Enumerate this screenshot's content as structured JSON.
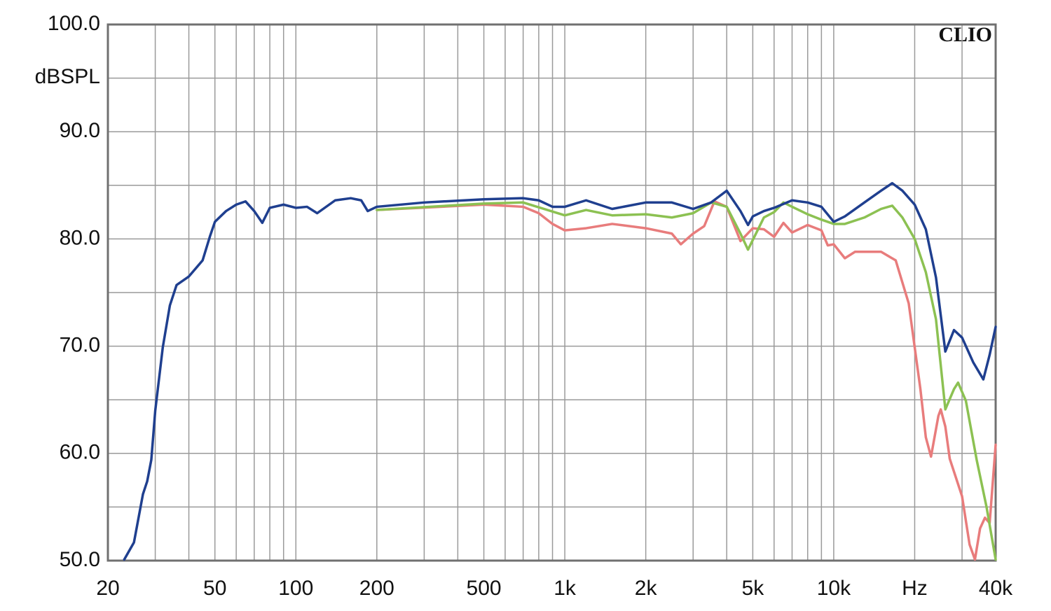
{
  "chart_data": {
    "type": "line",
    "watermark": "CLIO",
    "ylabel": "dBSPL",
    "xscale": "log",
    "xlim": [
      20,
      40000
    ],
    "ylim": [
      50,
      100
    ],
    "xticks": [
      20,
      50,
      100,
      200,
      500,
      {
        "value": 1000,
        "label": "1k"
      },
      {
        "value": 2000,
        "label": "2k"
      },
      {
        "value": 5000,
        "label": "5k"
      },
      {
        "value": 10000,
        "label": "10k"
      },
      {
        "value": 20000,
        "label": "Hz"
      },
      {
        "value": 40000,
        "label": "40k"
      }
    ],
    "xgrid": [
      30,
      40,
      60,
      70,
      80,
      90,
      300,
      400,
      600,
      700,
      800,
      900,
      3000,
      4000,
      6000,
      7000,
      8000,
      9000,
      30000
    ],
    "yticks": [
      {
        "value": 50,
        "label": "50.0"
      },
      {
        "value": 60,
        "label": "60.0"
      },
      {
        "value": 70,
        "label": "70.0"
      },
      {
        "value": 80,
        "label": "80.0"
      },
      {
        "value": 90,
        "label": "90.0"
      },
      {
        "value": 100,
        "label": "100.0"
      }
    ],
    "ygrid": [
      55,
      65,
      75,
      85,
      95
    ],
    "grid": true,
    "series": [
      {
        "color": "#1f3f8f",
        "x": [
          23,
          25,
          27,
          28,
          29,
          30,
          32,
          34,
          36,
          40,
          45,
          48,
          50,
          55,
          60,
          65,
          70,
          75,
          80,
          90,
          100,
          110,
          120,
          140,
          160,
          175,
          185,
          200,
          300,
          500,
          700,
          800,
          900,
          1000,
          1200,
          1500,
          2000,
          2500,
          3000,
          3500,
          4000,
          4500,
          4800,
          5000,
          5500,
          6000,
          7000,
          8000,
          9000,
          10000,
          11000,
          13000,
          15000,
          16500,
          18000,
          20000,
          22000,
          24000,
          26000,
          28000,
          30000,
          33000,
          36000,
          38000,
          40000
        ],
        "values": [
          50.1,
          51.7,
          56.2,
          57.4,
          59.4,
          64.0,
          69.9,
          73.8,
          75.7,
          76.5,
          78.0,
          80.3,
          81.6,
          82.6,
          83.2,
          83.5,
          82.6,
          81.5,
          82.9,
          83.2,
          82.9,
          83.0,
          82.4,
          83.6,
          83.8,
          83.6,
          82.6,
          83.0,
          83.4,
          83.7,
          83.8,
          83.6,
          83.0,
          83.0,
          83.6,
          82.8,
          83.4,
          83.4,
          82.8,
          83.4,
          84.5,
          82.6,
          81.3,
          82.1,
          82.6,
          82.9,
          83.6,
          83.4,
          83.0,
          81.6,
          82.1,
          83.4,
          84.5,
          85.2,
          84.5,
          83.2,
          80.9,
          76.4,
          69.5,
          71.5,
          70.8,
          68.5,
          66.9,
          69.2,
          71.8
        ]
      },
      {
        "color": "#8cc152",
        "x": [
          200,
          500,
          700,
          1000,
          1200,
          1500,
          2000,
          2500,
          3000,
          3500,
          4000,
          4500,
          4800,
          5000,
          5500,
          6000,
          6500,
          7000,
          8000,
          9000,
          10000,
          11000,
          13000,
          15000,
          16500,
          18000,
          20000,
          22000,
          24000,
          26000,
          28000,
          29000,
          31000,
          34000,
          37000,
          40000
        ],
        "values": [
          82.7,
          83.3,
          83.4,
          82.2,
          82.7,
          82.2,
          82.3,
          82.0,
          82.4,
          83.4,
          83.0,
          80.5,
          79.0,
          79.9,
          82.0,
          82.5,
          83.4,
          83.0,
          82.3,
          81.8,
          81.4,
          81.4,
          82.0,
          82.8,
          83.1,
          82.0,
          80.0,
          76.9,
          72.5,
          64.1,
          66.0,
          66.6,
          64.9,
          59.4,
          55.0,
          50.1
        ]
      },
      {
        "color": "#e87c7c",
        "x": [
          200,
          500,
          700,
          800,
          900,
          1000,
          1200,
          1500,
          2000,
          2500,
          2700,
          3000,
          3300,
          3600,
          4000,
          4500,
          5000,
          5500,
          6000,
          6500,
          7000,
          8000,
          9000,
          9500,
          10000,
          11000,
          12000,
          15000,
          17000,
          19000,
          21000,
          22000,
          23000,
          24500,
          25000,
          26000,
          27000,
          30000,
          32000,
          33500,
          35000,
          36500,
          38000,
          40000
        ],
        "values": [
          82.7,
          83.2,
          83.0,
          82.4,
          81.4,
          80.8,
          81.0,
          81.4,
          81.0,
          80.5,
          79.5,
          80.5,
          81.2,
          83.5,
          83.0,
          79.8,
          81.0,
          80.9,
          80.2,
          81.5,
          80.6,
          81.3,
          80.8,
          79.4,
          79.5,
          78.2,
          78.8,
          78.8,
          78.0,
          74.0,
          66.0,
          61.5,
          59.7,
          63.5,
          64.1,
          62.5,
          59.5,
          56.0,
          51.5,
          50.1,
          53.0,
          54.0,
          53.5,
          60.8
        ]
      }
    ]
  }
}
